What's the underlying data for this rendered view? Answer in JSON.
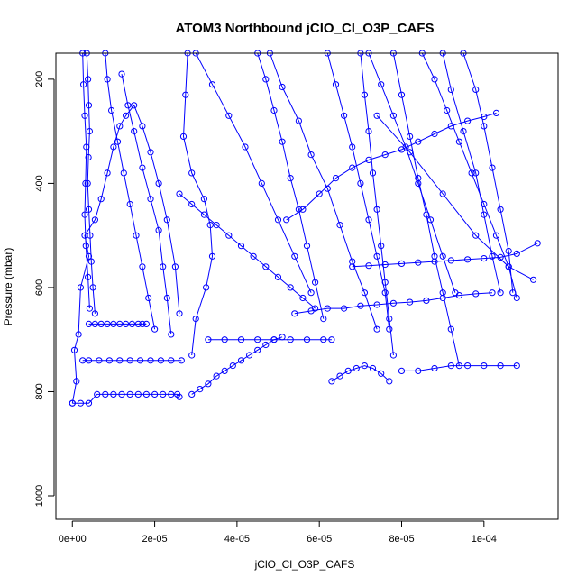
{
  "chart_data": {
    "type": "line",
    "title": "ATOM3 Northbound jClO_Cl_O3P_CAFS",
    "xlabel": "jClO_Cl_O3P_CAFS",
    "ylabel": "Pressure (mbar)",
    "xlim": [
      -4e-06,
      0.000118
    ],
    "ylim": [
      1045,
      150
    ],
    "y_reversed": true,
    "marker": "open-circle",
    "line_color": "#0000ff",
    "grid": false,
    "legend": "none",
    "x_ticks": [
      {
        "value": 0.0,
        "label": "0e+00"
      },
      {
        "value": 2e-05,
        "label": "2e-05"
      },
      {
        "value": 4e-05,
        "label": "4e-05"
      },
      {
        "value": 6e-05,
        "label": "6e-05"
      },
      {
        "value": 8e-05,
        "label": "8e-05"
      },
      {
        "value": 0.0001,
        "label": "1e-04"
      }
    ],
    "y_ticks": [
      {
        "value": 200,
        "label": "200"
      },
      {
        "value": 400,
        "label": "400"
      },
      {
        "value": 600,
        "label": "600"
      },
      {
        "value": 800,
        "label": "800"
      },
      {
        "value": 1000,
        "label": "1000"
      }
    ],
    "series": [
      {
        "x": [
          0.0,
          1e-06,
          5e-07,
          1.5e-06,
          2e-06,
          4e-06,
          3e-06,
          5.5e-06,
          7e-06,
          8.5e-06,
          1e-05,
          1.15e-05,
          1.3e-05,
          1.5e-05,
          1.7e-05,
          1.9e-05,
          2.1e-05,
          2.3e-05,
          2.5e-05,
          2.6e-05
        ],
        "y": [
          822,
          780,
          720,
          690,
          600,
          540,
          500,
          470,
          430,
          380,
          330,
          290,
          270,
          250,
          290,
          340,
          400,
          470,
          560,
          650
        ]
      },
      {
        "x": [
          0.0,
          2e-06,
          4e-06,
          6e-06,
          8e-06,
          1e-05,
          1.2e-05,
          1.4e-05,
          1.6e-05,
          1.8e-05,
          2e-05,
          2.2e-05,
          2.4e-05,
          2.55e-05,
          2.6e-05
        ],
        "y": [
          822,
          822,
          822,
          805,
          805,
          805,
          805,
          805,
          805,
          805,
          805,
          805,
          805,
          805,
          810
        ]
      },
      {
        "x": [
          2.5e-06,
          4e-06,
          6.5e-06,
          9e-06,
          1.15e-05,
          1.4e-05,
          1.65e-05,
          1.9e-05,
          2.15e-05,
          2.4e-05,
          2.65e-05
        ],
        "y": [
          740,
          740,
          740,
          740,
          740,
          740,
          740,
          740,
          740,
          740,
          740
        ]
      },
      {
        "x": [
          4e-06,
          5.5e-06,
          7e-06,
          8.5e-06,
          1e-05,
          1.15e-05,
          1.3e-05,
          1.45e-05,
          1.6e-05,
          1.7e-05,
          1.8e-05
        ],
        "y": [
          670,
          670,
          670,
          670,
          670,
          670,
          670,
          670,
          670,
          670,
          670
        ]
      },
      {
        "x": [
          3.5e-06,
          3.8e-06,
          4e-06,
          4.2e-06,
          3.9e-06,
          3.7e-06,
          4e-06,
          4.3e-06,
          4.6e-06,
          5e-06,
          5.5e-06
        ],
        "y": [
          150,
          200,
          250,
          300,
          350,
          400,
          450,
          500,
          550,
          600,
          650
        ]
      },
      {
        "x": [
          2.5e-06,
          2.7e-06,
          3e-06,
          3.4e-06,
          3.2e-06,
          3e-06,
          3.3e-06,
          3.8e-06,
          4.2e-06
        ],
        "y": [
          150,
          210,
          270,
          330,
          400,
          460,
          520,
          580,
          640
        ]
      },
      {
        "x": [
          8e-06,
          8.5e-06,
          9.5e-06,
          1.1e-05,
          1.25e-05,
          1.4e-05,
          1.55e-05,
          1.7e-05,
          1.85e-05,
          2e-05
        ],
        "y": [
          150,
          200,
          260,
          320,
          380,
          440,
          500,
          560,
          620,
          680
        ]
      },
      {
        "x": [
          1.2e-05,
          1.35e-05,
          1.5e-05,
          1.7e-05,
          1.9e-05,
          2.1e-05,
          2.2e-05,
          2.3e-05,
          2.4e-05
        ],
        "y": [
          190,
          250,
          300,
          370,
          430,
          490,
          560,
          620,
          690
        ]
      },
      {
        "x": [
          2.8e-05,
          2.75e-05,
          2.7e-05,
          2.9e-05,
          3.2e-05,
          3.35e-05,
          3.4e-05,
          3.25e-05,
          3e-05,
          2.9e-05
        ],
        "y": [
          150,
          230,
          310,
          380,
          430,
          480,
          540,
          600,
          660,
          730
        ]
      },
      {
        "x": [
          2.9e-05,
          3.1e-05,
          3.3e-05,
          3.5e-05,
          3.7e-05,
          3.9e-05,
          4.1e-05,
          4.3e-05,
          4.5e-05,
          4.7e-05,
          4.9e-05,
          5.1e-05
        ],
        "y": [
          805,
          795,
          785,
          770,
          760,
          750,
          740,
          730,
          720,
          710,
          700,
          695
        ]
      },
      {
        "x": [
          3.3e-05,
          3.7e-05,
          4.1e-05,
          4.5e-05,
          4.9e-05,
          5.3e-05,
          5.7e-05,
          6.1e-05,
          6.3e-05
        ],
        "y": [
          700,
          700,
          700,
          700,
          700,
          700,
          700,
          700,
          700
        ]
      },
      {
        "x": [
          3e-05,
          3.4e-05,
          3.8e-05,
          4.2e-05,
          4.6e-05,
          5e-05,
          5.4e-05,
          5.8e-05
        ],
        "y": [
          150,
          210,
          270,
          330,
          400,
          470,
          540,
          610
        ]
      },
      {
        "x": [
          4.5e-05,
          4.7e-05,
          4.9e-05,
          5.1e-05,
          5.3e-05,
          5.5e-05,
          5.7e-05,
          5.9e-05,
          6.1e-05
        ],
        "y": [
          150,
          200,
          260,
          320,
          390,
          450,
          520,
          590,
          660
        ]
      },
      {
        "x": [
          4.8e-05,
          5.1e-05,
          5.5e-05,
          5.8e-05,
          6.2e-05,
          6.5e-05,
          6.8e-05,
          7.1e-05,
          7.4e-05
        ],
        "y": [
          150,
          215,
          280,
          345,
          410,
          480,
          550,
          610,
          680
        ]
      },
      {
        "x": [
          6.2e-05,
          6.4e-05,
          6.6e-05,
          6.8e-05,
          7e-05,
          7.2e-05,
          7.4e-05,
          7.6e-05,
          7.7e-05
        ],
        "y": [
          150,
          210,
          270,
          330,
          400,
          470,
          540,
          610,
          680
        ]
      },
      {
        "x": [
          7e-05,
          7.1e-05,
          7.2e-05,
          7.3e-05,
          7.4e-05,
          7.5e-05,
          7.6e-05,
          7.7e-05,
          7.8e-05
        ],
        "y": [
          150,
          230,
          300,
          380,
          450,
          520,
          590,
          660,
          730
        ]
      },
      {
        "x": [
          7.2e-05,
          7.5e-05,
          7.8e-05,
          8.1e-05,
          8.4e-05,
          8.7e-05,
          9e-05,
          9.3e-05
        ],
        "y": [
          150,
          210,
          270,
          330,
          400,
          470,
          540,
          610
        ]
      },
      {
        "x": [
          7.8e-05,
          8e-05,
          8.2e-05,
          8.4e-05,
          8.6e-05,
          8.8e-05,
          9e-05,
          9.2e-05,
          9.4e-05
        ],
        "y": [
          150,
          230,
          310,
          390,
          460,
          540,
          610,
          680,
          750
        ]
      },
      {
        "x": [
          8.5e-05,
          8.8e-05,
          9.1e-05,
          9.4e-05,
          9.7e-05,
          0.0001,
          0.000103,
          0.000106,
          0.000108
        ],
        "y": [
          150,
          200,
          260,
          320,
          380,
          440,
          500,
          560,
          620
        ]
      },
      {
        "x": [
          9e-05,
          9.2e-05,
          9.5e-05,
          9.8e-05,
          0.0001,
          0.000102,
          0.000104
        ],
        "y": [
          150,
          220,
          300,
          380,
          460,
          540,
          610
        ]
      },
      {
        "x": [
          9.5e-05,
          9.8e-05,
          0.0001,
          0.000102,
          0.000104,
          0.000106,
          0.000107
        ],
        "y": [
          150,
          220,
          290,
          370,
          450,
          530,
          610
        ]
      },
      {
        "x": [
          8e-05,
          8.4e-05,
          8.8e-05,
          9.2e-05,
          9.6e-05,
          0.0001,
          0.000104,
          0.000108
        ],
        "y": [
          760,
          760,
          755,
          750,
          750,
          750,
          750,
          750
        ]
      },
      {
        "x": [
          6.3e-05,
          6.5e-05,
          6.7e-05,
          6.9e-05,
          7.1e-05,
          7.3e-05,
          7.5e-05,
          7.7e-05
        ],
        "y": [
          780,
          770,
          760,
          755,
          750,
          755,
          765,
          780
        ]
      },
      {
        "x": [
          6.8e-05,
          7.2e-05,
          7.6e-05,
          8e-05,
          8.4e-05,
          8.8e-05,
          9.2e-05,
          9.6e-05,
          0.0001,
          0.000104,
          0.000108,
          0.000113
        ],
        "y": [
          560,
          558,
          556,
          554,
          552,
          550,
          548,
          546,
          544,
          542,
          535,
          515
        ]
      },
      {
        "x": [
          7.4e-05,
          8.2e-05,
          9e-05,
          9.8e-05,
          0.000106,
          0.000112
        ],
        "y": [
          270,
          340,
          420,
          500,
          560,
          585
        ]
      },
      {
        "x": [
          5.2e-05,
          5.6e-05,
          6e-05,
          6.4e-05,
          6.8e-05,
          7.2e-05,
          7.6e-05,
          8e-05,
          8.4e-05,
          8.8e-05,
          9.2e-05,
          9.6e-05,
          0.0001,
          0.000103
        ],
        "y": [
          470,
          450,
          420,
          390,
          370,
          355,
          345,
          335,
          320,
          305,
          290,
          280,
          272,
          265
        ]
      },
      {
        "x": [
          5.4e-05,
          5.8e-05,
          6.2e-05,
          6.6e-05,
          7e-05,
          7.4e-05,
          7.8e-05,
          8.2e-05,
          8.6e-05,
          9e-05,
          9.4e-05,
          9.8e-05,
          0.000102
        ],
        "y": [
          650,
          645,
          640,
          640,
          635,
          633,
          630,
          628,
          625,
          620,
          615,
          612,
          610
        ]
      },
      {
        "x": [
          2.6e-05,
          2.9e-05,
          3.2e-05,
          3.5e-05,
          3.8e-05,
          4.1e-05,
          4.4e-05,
          4.7e-05,
          5e-05,
          5.3e-05,
          5.6e-05,
          5.9e-05
        ],
        "y": [
          420,
          440,
          460,
          480,
          500,
          520,
          540,
          560,
          580,
          600,
          620,
          640
        ]
      }
    ]
  }
}
